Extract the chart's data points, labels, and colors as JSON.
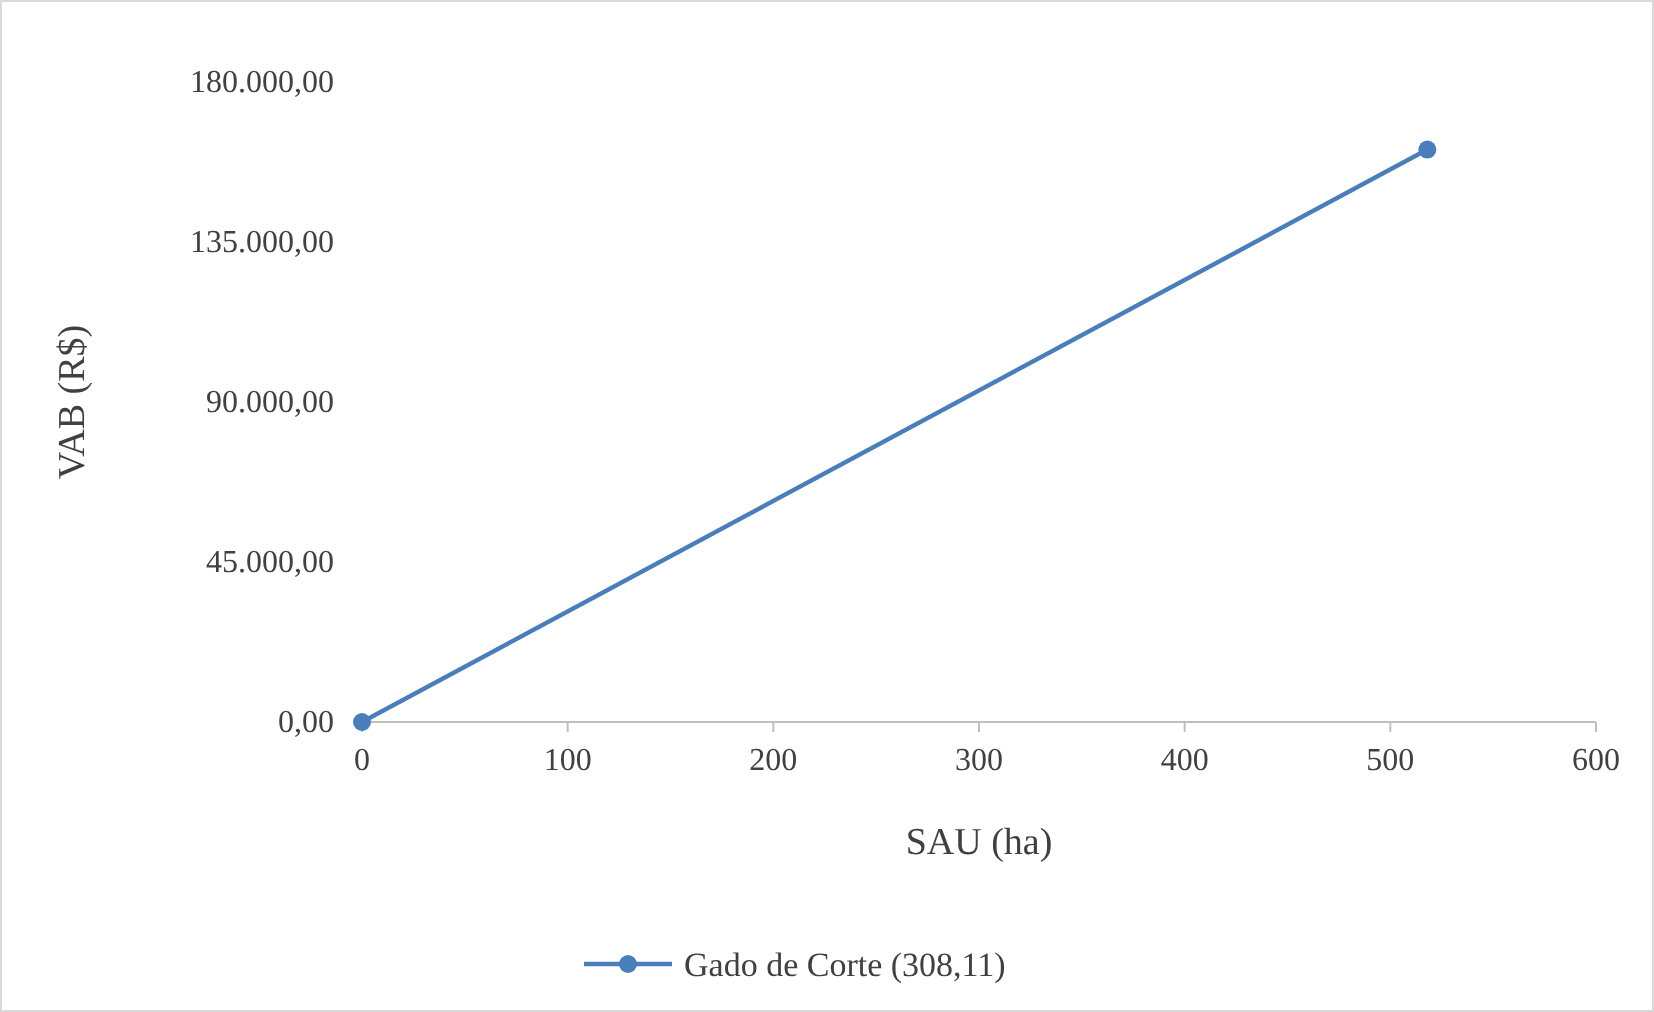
{
  "chart_data": {
    "type": "line",
    "xlabel": "SAU (ha)",
    "ylabel": "VAB (R$)",
    "x": [
      0,
      518
    ],
    "series": [
      {
        "name": "Gado de Corte (308,11)",
        "color": "#4a7ebb",
        "values": [
          0,
          161000
        ]
      }
    ],
    "xlim": [
      0,
      600
    ],
    "xticks": [
      0,
      100,
      200,
      300,
      400,
      500,
      600
    ],
    "ylim": [
      0,
      180000
    ],
    "yticks": [
      {
        "value": 0,
        "label": "0,00"
      },
      {
        "value": 45000,
        "label": "45.000,00"
      },
      {
        "value": 90000,
        "label": "90.000,00"
      },
      {
        "value": 135000,
        "label": "135.000,00"
      },
      {
        "value": 180000,
        "label": "180.000,00"
      }
    ],
    "grid": false,
    "legend": "bottom",
    "marker": "circle",
    "line_style": "solid"
  }
}
